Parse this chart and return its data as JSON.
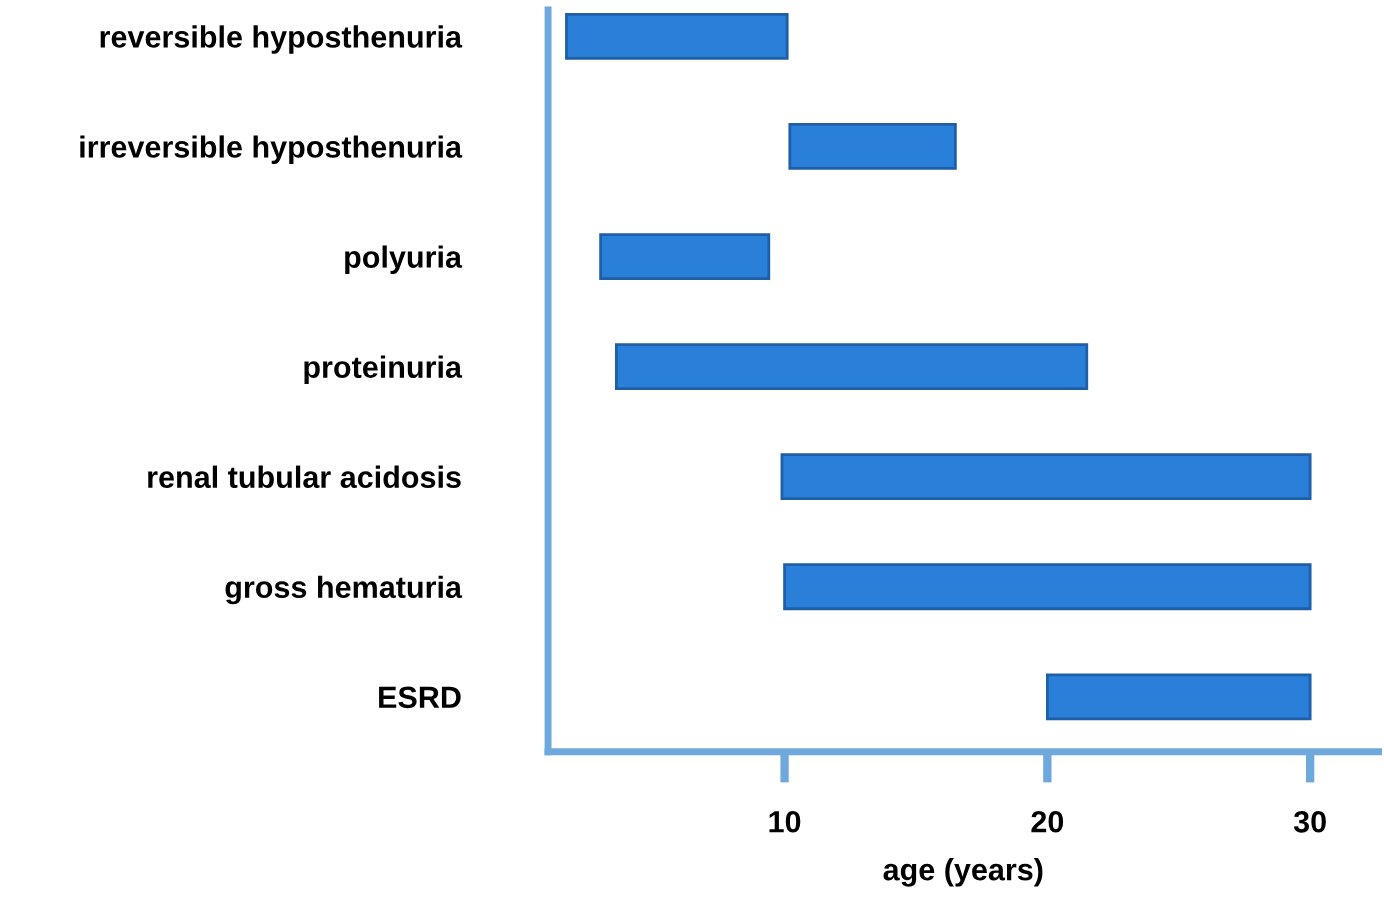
{
  "chart_data": {
    "type": "bar",
    "orientation": "horizontal",
    "xlabel": "age (years)",
    "categories": [
      "reversible hyposthenuria",
      "irreversible hyposthenuria",
      "polyuria",
      "proteinuria",
      "renal tubular acidosis",
      "gross hematuria",
      "ESRD"
    ],
    "base": [
      1.7,
      10.2,
      3,
      3.6,
      9.9,
      10,
      20
    ],
    "values": [
      8.4,
      6.3,
      6.4,
      17.9,
      20.1,
      20,
      10
    ],
    "color": "#2a7fd9",
    "xlim": [
      1,
      32.6
    ],
    "xticks": [
      10,
      20,
      30
    ],
    "grid": false,
    "legend": false
  }
}
